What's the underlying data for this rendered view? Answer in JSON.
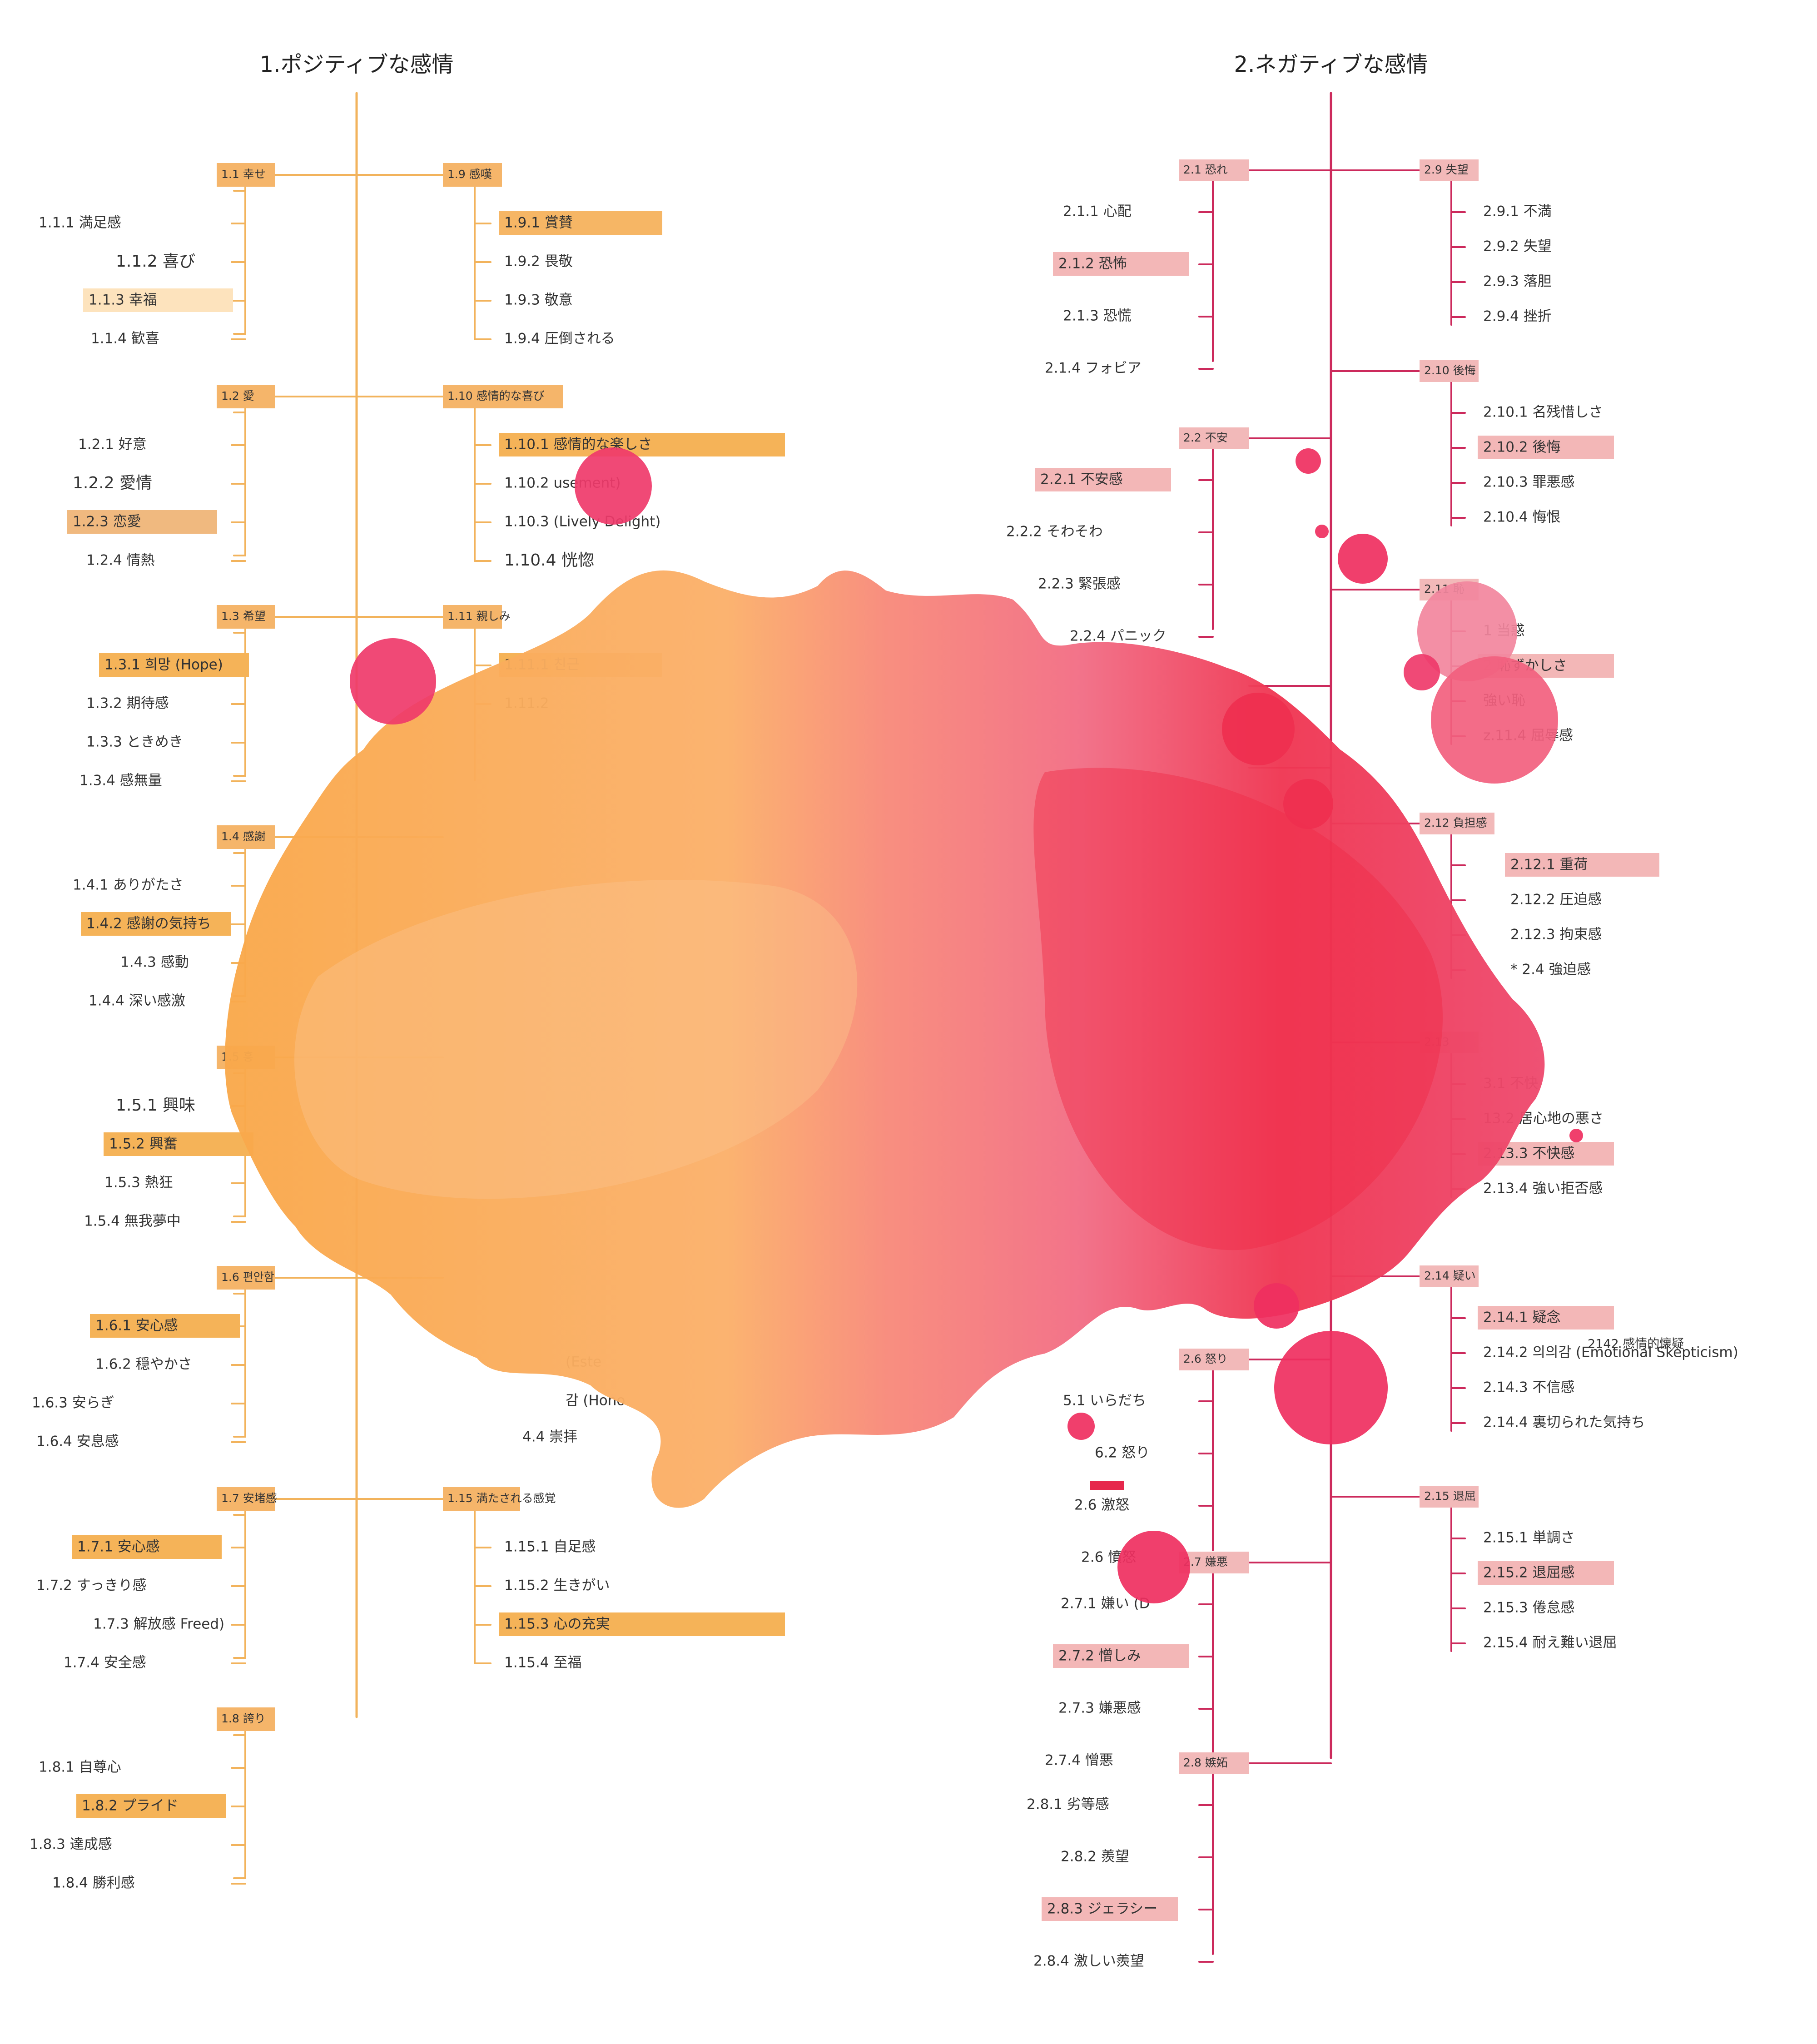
{
  "positive": {
    "title": "1.ポジティブな感情",
    "accent": "#f2b35c",
    "categories": [
      {
        "label": "1.1 幸せ",
        "items": [
          "1.1.1 満足感",
          "1.1.2 喜び",
          "1.1.3 幸福",
          "1.1.4 歓喜"
        ]
      },
      {
        "label": "1.2 愛",
        "items": [
          "1.2.1 好意",
          "1.2.2 愛情",
          "1.2.3 恋愛",
          "1.2.4 情熱"
        ]
      },
      {
        "label": "1.3 希望",
        "items": [
          "1.3.1 희망 (Hope)",
          "1.3.2 期待感",
          "1.3.3 ときめき",
          "1.3.4 感無量"
        ]
      },
      {
        "label": "1.4 感謝",
        "items": [
          "1.4.1 ありがたさ",
          "1.4.2 感謝の気持ち",
          "1.4.3 感動",
          "1.4.4 深い感激"
        ]
      },
      {
        "label": "1.5 흥",
        "items": [
          "1.5.1 興味",
          "1.5.2 興奮",
          "1.5.3 熱狂",
          "1.5.4 無我夢中"
        ]
      },
      {
        "label": "1.6 편안함",
        "items": [
          "1.6.1 安心感",
          "1.6.2 穏やかさ",
          "1.6.3 安らぎ",
          "1.6.4 安息感"
        ]
      },
      {
        "label": "1.7 安堵感",
        "items": [
          "1.7.1 安心感",
          "1.7.2 すっきり感",
          "1.7.3 解放感 Freed)",
          "1.7.4 安全感"
        ]
      },
      {
        "label": "1.8 誇り",
        "items": [
          "1.8.1 自尊心",
          "1.8.2 プライド",
          "1.8.3 達成感",
          "1.8.4 勝利感"
        ]
      },
      {
        "label": "1.9 感嘆",
        "items": [
          "1.9.1 賞賛",
          "1.9.2 畏敬",
          "1.9.3 敬意",
          "1.9.4 圧倒される"
        ]
      },
      {
        "label": "1.10 感情的な喜び",
        "items": [
          "1.10.1 感情的な楽しさ",
          "1.10.2 usement)",
          "1.10.3 (Lively Delight)",
          "1.10.4 恍惚"
        ]
      },
      {
        "label": "1.11 親しみ",
        "items": [
          "1.11.1 친근",
          "1.11.2",
          "",
          ""
        ]
      },
      {
        "label": "1.15 満たされる感覚",
        "items": [
          "1.15.1 自足感",
          "1.15.2 生きがい",
          "1.15.3 心の充実",
          "1.15.4 至福"
        ]
      }
    ],
    "fragments": [
      "(Este",
      "감 (Hono",
      "4.4 崇拝"
    ]
  },
  "negative": {
    "title": "2.ネガティブな感情",
    "accent": "#cc2a5c",
    "categories": [
      {
        "label": "2.1 恐れ",
        "items": [
          "2.1.1 心配",
          "2.1.2 恐怖",
          "2.1.3 恐慌",
          "2.1.4 フォビア"
        ]
      },
      {
        "label": "2.2 不安",
        "items": [
          "2.2.1 不安感",
          "2.2.2 そわそわ",
          "2.2.3 緊張感",
          "2.2.4 パニック"
        ]
      },
      {
        "label": "2.6 怒り",
        "items": [
          "5.1 いらだち",
          "6.2 怒り",
          "2.6 激怒",
          "2.6 憤怒"
        ]
      },
      {
        "label": "2.7 嫌悪",
        "items": [
          "2.7.1 嫌い (D",
          "2.7.2 憎しみ",
          "2.7.3 嫌悪感",
          "2.7.4 憎悪"
        ]
      },
      {
        "label": "2.8 嫉妬",
        "items": [
          "2.8.1 劣等感",
          "2.8.2 羨望",
          "2.8.3 ジェラシー",
          "2.8.4 激しい羨望"
        ]
      },
      {
        "label": "2.9 失望",
        "items": [
          "2.9.1 不満",
          "2.9.2 失望",
          "2.9.3 落胆",
          "2.9.4 挫折"
        ]
      },
      {
        "label": "2.10 後悔",
        "items": [
          "2.10.1 名残惜しさ",
          "2.10.2 後悔",
          "2.10.3 罪悪感",
          "2.10.4 悔恨"
        ]
      },
      {
        "label": "2.11 恥",
        "items": [
          "1 当惑",
          "2 恥ずかしさ",
          "強い恥",
          "z.11.4 屈辱感"
        ]
      },
      {
        "label": "2.12 負担感",
        "items": [
          "2.12.1 重荷",
          "2.12.2 圧迫感",
          "2.12.3 拘束感",
          "* 2.4 強迫感"
        ]
      },
      {
        "label": "2.13",
        "items": [
          "3.1 不快",
          "13.2 居心地の悪さ",
          "2.13.3 不快感",
          "2.13.4 強い拒否感"
        ]
      },
      {
        "label": "2.14 疑い",
        "items": [
          "2.14.1 疑念",
          "2.14.2 의의감 (Emotional Skepticism)",
          "2.14.3 不信感",
          "2.14.4 裏切られた気持ち"
        ]
      },
      {
        "label": "2.15 退屈",
        "items": [
          "2.15.1 単調さ",
          "2.15.2 退屈感",
          "2.15.3 倦怠感",
          "2.15.4 耐え難い退屈"
        ]
      }
    ],
    "fragments": [
      "2142 感情的懐疑"
    ]
  },
  "overlay": {
    "orange": "#f7a94b",
    "pink": "#f2607e",
    "red": "#ef2f4f"
  }
}
